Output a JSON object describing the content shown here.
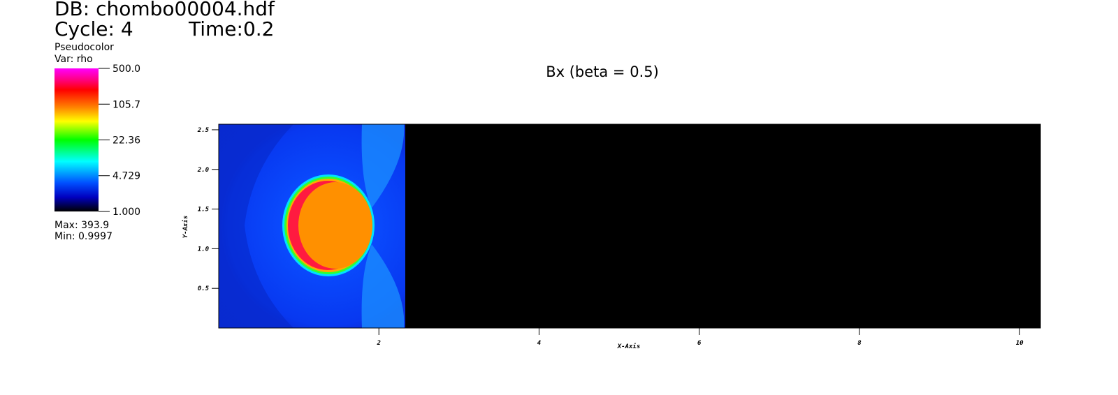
{
  "header": {
    "db": "DB: chombo00004.hdf",
    "cycle": "Cycle: 4",
    "time": "Time:0.2"
  },
  "legend": {
    "plot": "Pseudocolor",
    "var": "Var: rho",
    "log": true,
    "ticks": [
      {
        "value": 500,
        "label": "500.0"
      },
      105.7,
      22.36,
      4.729,
      {
        "value": 1,
        "label": "1.000"
      }
    ],
    "max": "Max: 393.9",
    "min": "Min: 0.9997"
  },
  "chart_data": {
    "type": "pseudocolor",
    "title": "Bx (beta = 0.5)",
    "x_label": "X-Axis",
    "y_label": "Y-Axis",
    "xlim": [
      0,
      10.26
    ],
    "ylim": [
      0,
      2.57
    ],
    "xticks": [
      2,
      4,
      6,
      8,
      10
    ],
    "yticks": [
      0.5,
      {
        "value": 1,
        "label": "1.0"
      },
      1.5,
      {
        "value": 2,
        "label": "2.0"
      },
      2.5
    ]
  }
}
